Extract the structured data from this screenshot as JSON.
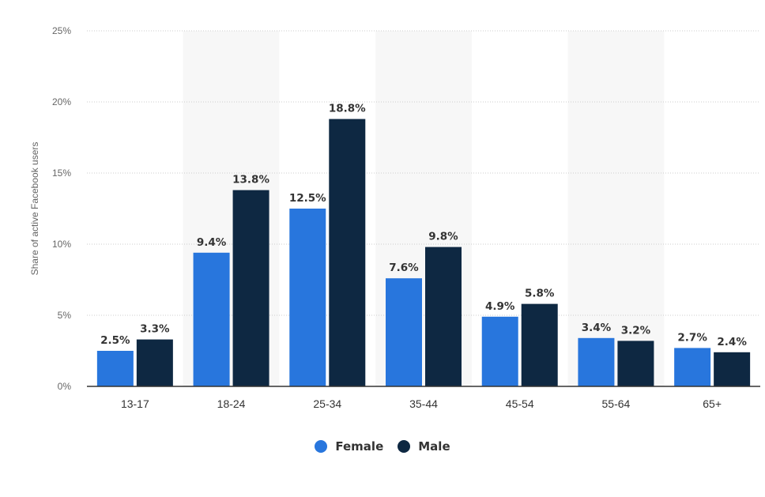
{
  "chart_data": {
    "type": "bar",
    "categories": [
      "13-17",
      "18-24",
      "25-34",
      "35-44",
      "45-54",
      "55-64",
      "65+"
    ],
    "series": [
      {
        "name": "Female",
        "color": "#2876dd",
        "values": [
          2.5,
          9.4,
          12.5,
          7.6,
          4.9,
          3.4,
          2.7
        ],
        "labels": [
          "2.5%",
          "9.4%",
          "12.5%",
          "7.6%",
          "4.9%",
          "3.4%",
          "2.7%"
        ]
      },
      {
        "name": "Male",
        "color": "#0e2842",
        "values": [
          3.3,
          13.8,
          18.8,
          9.8,
          5.8,
          3.2,
          2.4
        ],
        "labels": [
          "3.3%",
          "13.8%",
          "18.8%",
          "9.8%",
          "5.8%",
          "3.2%",
          "2.4%"
        ]
      }
    ],
    "ylabel": "Share of active Facebook users",
    "ylim": [
      0,
      25
    ],
    "yticks": [
      0,
      5,
      10,
      15,
      20,
      25
    ],
    "ytick_labels": [
      "0%",
      "5%",
      "10%",
      "15%",
      "20%",
      "25%"
    ],
    "grid": true,
    "legend_position": "bottom-center",
    "alternating_band_color": "#f7f7f7",
    "grid_color": "#cccccc",
    "axis_color": "#333333"
  }
}
